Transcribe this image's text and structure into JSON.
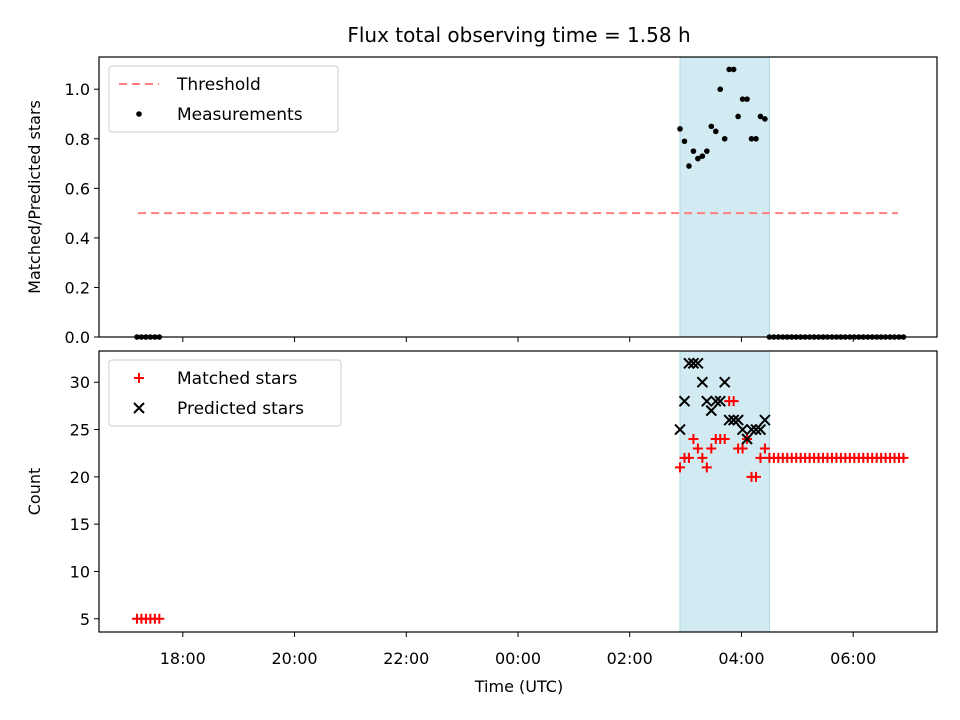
{
  "chart_data": {
    "title": "Flux total observing time = 1.58 h",
    "xlabel": "Time (UTC)",
    "x_tick_labels": [
      "18:00",
      "20:00",
      "22:00",
      "00:00",
      "02:00",
      "04:00",
      "06:00"
    ],
    "x_ticks_hours": [
      18,
      20,
      22,
      24,
      26,
      28,
      30
    ],
    "xlim_hours": [
      16.5,
      31.5
    ],
    "highlight_span_hours": [
      26.9,
      28.5
    ],
    "highlight_color": "#add8e6",
    "panels": [
      {
        "type": "scatter",
        "ylabel": "Matched/Predicted stars",
        "ylim": [
          0,
          1.13
        ],
        "yticks": [
          0.0,
          0.2,
          0.4,
          0.6,
          0.8,
          1.0
        ],
        "ytick_labels": [
          "0.0",
          "0.2",
          "0.4",
          "0.6",
          "0.8",
          "1.0"
        ],
        "legend_position": "upper-left",
        "threshold": {
          "name": "Threshold",
          "value": 0.5,
          "x_range": [
            17.2,
            30.8
          ],
          "color": "#ff7f7f"
        },
        "series": [
          {
            "name": "Measurements",
            "color": "#000000",
            "marker": "dot",
            "x": [
              17.18,
              17.26,
              17.34,
              17.42,
              17.5,
              17.58,
              26.9,
              26.98,
              27.06,
              27.14,
              27.22,
              27.3,
              27.38,
              27.46,
              27.54,
              27.62,
              27.7,
              27.78,
              27.86,
              27.94,
              28.02,
              28.1,
              28.18,
              28.26,
              28.34,
              28.42,
              28.5,
              28.58,
              28.66,
              28.74,
              28.82,
              28.9,
              28.98,
              29.06,
              29.14,
              29.22,
              29.3,
              29.38,
              29.46,
              29.54,
              29.62,
              29.7,
              29.78,
              29.86,
              29.94,
              30.02,
              30.1,
              30.18,
              30.26,
              30.34,
              30.42,
              30.5,
              30.58,
              30.66,
              30.74,
              30.82,
              30.9
            ],
            "y": [
              0,
              0,
              0,
              0,
              0,
              0,
              0.84,
              0.79,
              0.69,
              0.75,
              0.72,
              0.73,
              0.75,
              0.85,
              0.83,
              1.0,
              0.8,
              1.08,
              1.08,
              0.89,
              0.96,
              0.96,
              0.8,
              0.8,
              0.89,
              0.88,
              0,
              0,
              0,
              0,
              0,
              0,
              0,
              0,
              0,
              0,
              0,
              0,
              0,
              0,
              0,
              0,
              0,
              0,
              0,
              0,
              0,
              0,
              0,
              0,
              0,
              0,
              0,
              0,
              0,
              0,
              0
            ]
          }
        ]
      },
      {
        "type": "scatter",
        "ylabel": "Count",
        "ylim": [
          3.6,
          33.3
        ],
        "yticks": [
          5,
          10,
          15,
          20,
          25,
          30
        ],
        "ytick_labels": [
          "5",
          "10",
          "15",
          "20",
          "25",
          "30"
        ],
        "legend_position": "upper-left",
        "series": [
          {
            "name": "Matched stars",
            "color": "#ff0000",
            "marker": "plus",
            "x": [
              17.18,
              17.26,
              17.34,
              17.42,
              17.5,
              17.58,
              26.9,
              26.98,
              27.06,
              27.14,
              27.22,
              27.3,
              27.38,
              27.46,
              27.54,
              27.62,
              27.7,
              27.78,
              27.86,
              27.94,
              28.02,
              28.1,
              28.18,
              28.26,
              28.34,
              28.42,
              28.5,
              28.58,
              28.66,
              28.74,
              28.82,
              28.9,
              28.98,
              29.06,
              29.14,
              29.22,
              29.3,
              29.38,
              29.46,
              29.54,
              29.62,
              29.7,
              29.78,
              29.86,
              29.94,
              30.02,
              30.1,
              30.18,
              30.26,
              30.34,
              30.42,
              30.5,
              30.58,
              30.66,
              30.74,
              30.82,
              30.9
            ],
            "y": [
              5,
              5,
              5,
              5,
              5,
              5,
              21,
              22,
              22,
              24,
              23,
              22,
              21,
              23,
              24,
              24,
              24,
              28,
              28,
              23,
              23,
              24,
              20,
              20,
              22,
              23,
              22,
              22,
              22,
              22,
              22,
              22,
              22,
              22,
              22,
              22,
              22,
              22,
              22,
              22,
              22,
              22,
              22,
              22,
              22,
              22,
              22,
              22,
              22,
              22,
              22,
              22,
              22,
              22,
              22,
              22,
              22
            ]
          },
          {
            "name": "Predicted stars",
            "color": "#000000",
            "marker": "x",
            "x": [
              26.9,
              26.98,
              27.06,
              27.14,
              27.22,
              27.3,
              27.38,
              27.46,
              27.54,
              27.62,
              27.7,
              27.78,
              27.86,
              27.94,
              28.02,
              28.1,
              28.18,
              28.26,
              28.34,
              28.42
            ],
            "y": [
              25,
              28,
              32,
              32,
              32,
              30,
              28,
              27,
              28,
              28,
              30,
              26,
              26,
              26,
              25,
              24,
              25,
              25,
              25,
              26
            ]
          }
        ]
      }
    ]
  }
}
